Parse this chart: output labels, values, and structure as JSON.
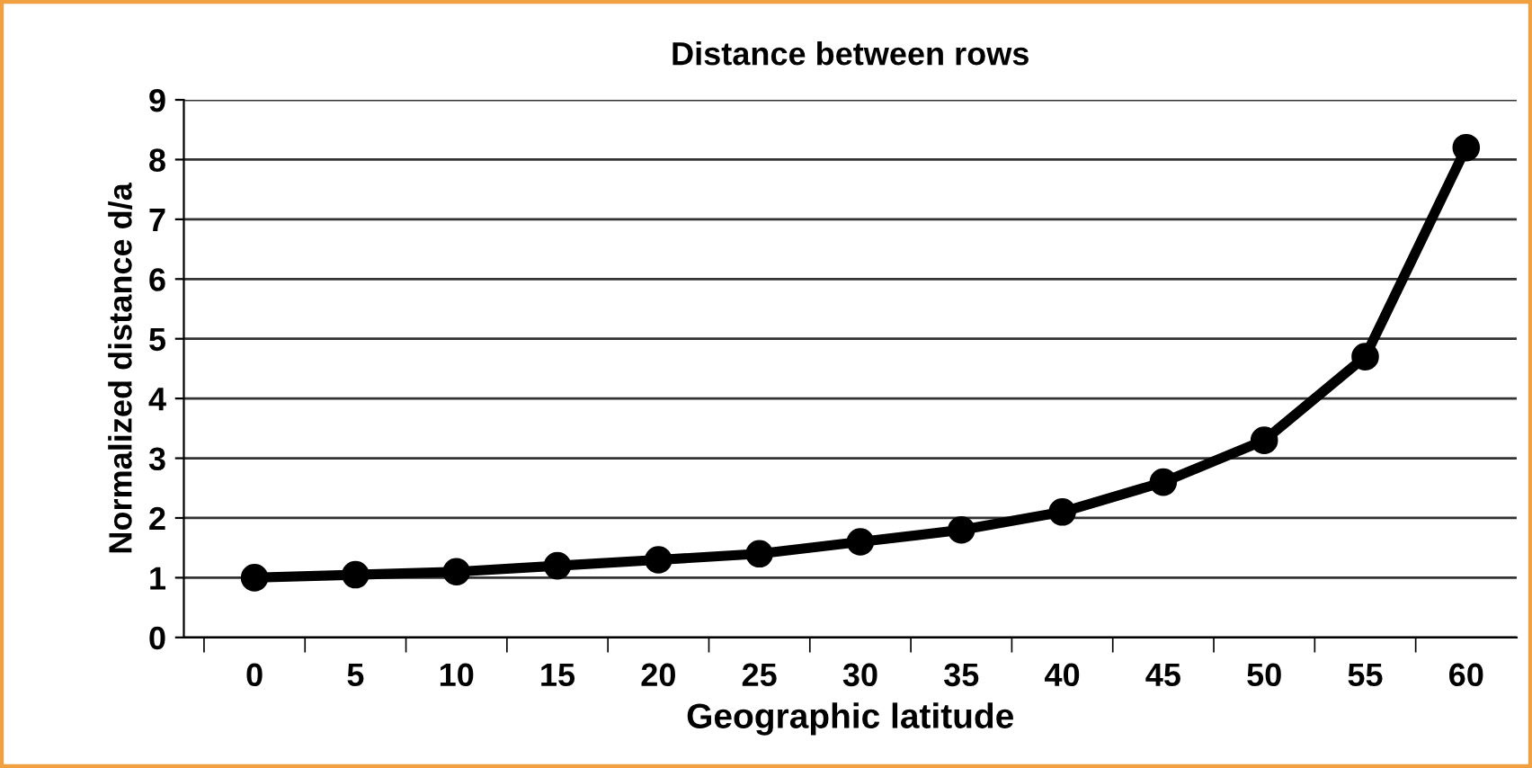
{
  "chart_data": {
    "type": "line",
    "title": "Distance between rows",
    "xlabel": "Geographic latitude",
    "ylabel": "Normalized distance d/a",
    "categories": [
      "0",
      "5",
      "10",
      "15",
      "20",
      "25",
      "30",
      "35",
      "40",
      "45",
      "50",
      "55",
      "60"
    ],
    "series": [
      {
        "color": "#000000",
        "values": [
          1.0,
          1.05,
          1.1,
          1.2,
          1.3,
          1.4,
          1.6,
          1.8,
          2.1,
          2.6,
          3.3,
          4.7,
          8.2
        ]
      }
    ],
    "ylim": [
      0,
      9
    ],
    "yticks": [
      0,
      1,
      2,
      3,
      4,
      5,
      6,
      7,
      8,
      9
    ],
    "grid": "y",
    "marker": "circle",
    "line_style": "solid"
  }
}
